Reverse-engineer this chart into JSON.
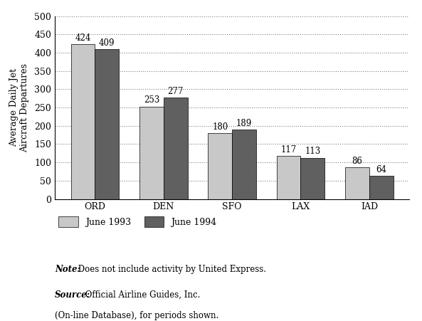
{
  "categories": [
    "ORD",
    "DEN",
    "SFO",
    "LAX",
    "IAD"
  ],
  "june1993": [
    424,
    253,
    180,
    117,
    86
  ],
  "june1994": [
    409,
    277,
    189,
    113,
    64
  ],
  "color1993": "#c8c8c8",
  "color1994": "#606060",
  "ylabel": "Average Daily Jet\nAircraft Departures",
  "ylim": [
    0,
    500
  ],
  "yticks": [
    0,
    50,
    100,
    150,
    200,
    250,
    300,
    350,
    400,
    450,
    500
  ],
  "legend1": "June 1993",
  "legend2": "June 1994",
  "note_italic": "Note:",
  "note_rest": " Does not include activity by United Express.",
  "source_italic": "Source:",
  "source_rest": " Official Airline Guides, Inc.\n(On-line Database), for periods shown.",
  "bar_width": 0.35,
  "label_fontsize": 8.5,
  "tick_fontsize": 9,
  "ylabel_fontsize": 9
}
